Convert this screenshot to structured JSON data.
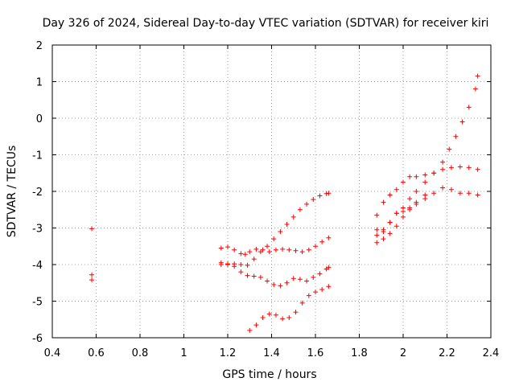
{
  "chart_data": {
    "type": "scatter",
    "title": "Day 326 of 2024, Sidereal Day-to-day VTEC variation (SDTVAR) for receiver kiri",
    "xlabel": "GPS time / hours",
    "ylabel": "SDTVAR / TECUs",
    "xlim": [
      0.4,
      2.4
    ],
    "ylim": [
      -6,
      2
    ],
    "grid": true,
    "legend": "none",
    "marker": "+",
    "color": "#ff0000",
    "x_ticks": [
      0.4,
      0.6,
      0.8,
      1,
      1.2,
      1.4,
      1.6,
      1.8,
      2,
      2.2,
      2.4
    ],
    "x_tick_labels": [
      "0.4",
      "0.6",
      "0.8",
      "1",
      "1.2",
      "1.4",
      "1.6",
      "1.8",
      "2",
      "2.2",
      "2.4"
    ],
    "y_ticks": [
      -6,
      -5,
      -4,
      -3,
      -2,
      -1,
      0,
      1,
      2
    ],
    "y_tick_labels": [
      "-6",
      "-5",
      "-4",
      "-3",
      "-2",
      "-1",
      "0",
      "1",
      "2"
    ],
    "series": [
      {
        "name": "isolated",
        "x": [
          0.58,
          0.58,
          0.58
        ],
        "y": [
          -3.02,
          -4.28,
          -4.42
        ]
      },
      {
        "name": "arc-1a",
        "x": [
          1.17,
          1.2,
          1.23,
          1.26,
          1.28,
          1.3,
          1.33,
          1.36,
          1.39,
          1.42,
          1.45,
          1.48,
          1.51,
          1.54,
          1.57,
          1.6,
          1.63,
          1.66
        ],
        "y": [
          -3.55,
          -3.52,
          -3.6,
          -3.7,
          -3.72,
          -3.65,
          -3.58,
          -3.6,
          -3.65,
          -3.6,
          -3.58,
          -3.6,
          -3.62,
          -3.65,
          -3.6,
          -3.5,
          -3.38,
          -3.27
        ]
      },
      {
        "name": "arc-1b",
        "x": [
          1.17,
          1.2,
          1.23,
          1.26,
          1.29,
          1.32,
          1.35,
          1.38,
          1.41,
          1.44,
          1.47,
          1.5,
          1.53,
          1.56,
          1.59,
          1.62,
          1.65,
          1.66
        ],
        "y": [
          -3.95,
          -4.0,
          -3.98,
          -4.0,
          -4.02,
          -3.85,
          -3.65,
          -3.5,
          -3.3,
          -3.1,
          -2.9,
          -2.7,
          -2.5,
          -2.35,
          -2.22,
          -2.12,
          -2.06,
          -2.05
        ]
      },
      {
        "name": "arc-1c",
        "x": [
          1.17,
          1.2,
          1.23,
          1.26,
          1.29,
          1.32,
          1.35,
          1.38,
          1.41,
          1.44,
          1.47,
          1.5,
          1.53,
          1.56,
          1.59,
          1.62,
          1.65,
          1.66
        ],
        "y": [
          -4.0,
          -3.98,
          -4.05,
          -4.2,
          -4.3,
          -4.32,
          -4.35,
          -4.45,
          -4.55,
          -4.58,
          -4.5,
          -4.38,
          -4.4,
          -4.45,
          -4.35,
          -4.25,
          -4.12,
          -4.08
        ]
      },
      {
        "name": "arc-1d",
        "x": [
          1.3,
          1.33,
          1.36,
          1.39,
          1.42,
          1.45,
          1.48,
          1.51,
          1.54,
          1.57,
          1.6,
          1.63,
          1.66
        ],
        "y": [
          -5.8,
          -5.65,
          -5.45,
          -5.35,
          -5.38,
          -5.48,
          -5.45,
          -5.3,
          -5.05,
          -4.85,
          -4.75,
          -4.68,
          -4.6
        ]
      },
      {
        "name": "arc-2a",
        "x": [
          1.88,
          1.91,
          1.94,
          1.97,
          2.0,
          2.03,
          2.06,
          2.1,
          2.14,
          2.18,
          2.22,
          2.26,
          2.3,
          2.34
        ],
        "y": [
          -2.65,
          -2.3,
          -2.1,
          -1.95,
          -1.75,
          -1.6,
          -1.6,
          -1.55,
          -1.5,
          -1.4,
          -1.35,
          -1.33,
          -1.35,
          -1.4
        ]
      },
      {
        "name": "arc-2b",
        "x": [
          1.88,
          1.91,
          1.94,
          1.97,
          2.0,
          2.03,
          2.06,
          2.1,
          2.14,
          2.18,
          2.21,
          2.24,
          2.27,
          2.3,
          2.33,
          2.34
        ],
        "y": [
          -3.2,
          -3.05,
          -2.85,
          -2.6,
          -2.45,
          -2.2,
          -2.0,
          -1.75,
          -1.5,
          -1.2,
          -0.85,
          -0.5,
          -0.1,
          0.3,
          0.8,
          1.15
        ]
      },
      {
        "name": "arc-2c",
        "x": [
          1.88,
          1.91,
          1.94,
          1.97,
          2.0,
          2.03,
          2.06,
          2.1,
          2.14,
          2.18,
          2.22,
          2.26,
          2.3,
          2.34
        ],
        "y": [
          -3.05,
          -3.1,
          -2.85,
          -2.6,
          -2.55,
          -2.5,
          -2.35,
          -2.2,
          -2.05,
          -1.9,
          -1.95,
          -2.05,
          -2.05,
          -2.1
        ]
      },
      {
        "name": "arc-2d",
        "x": [
          1.88,
          1.91,
          1.94,
          1.97,
          2.0,
          2.03,
          2.06,
          2.1
        ],
        "y": [
          -3.4,
          -3.3,
          -3.15,
          -2.95,
          -2.7,
          -2.45,
          -2.3,
          -2.1
        ]
      }
    ]
  }
}
